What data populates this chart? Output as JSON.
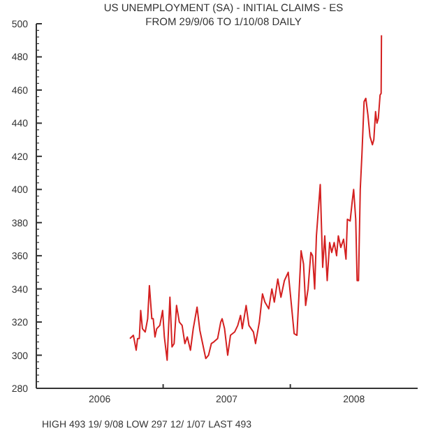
{
  "chart_data": {
    "type": "line",
    "title": "US UNEMPLOYMENT (SA) - INITIAL CLAIMS - ES",
    "subtitle": "FROM 29/9/06 TO 1/10/08 DAILY",
    "annotations": [
      "HIGH 493 19/ 9/08 LOW 297 12/ 1/07 LAST 493"
    ],
    "xlim": [
      "2006-01-01",
      "2009-01-01"
    ],
    "xticks": [
      {
        "value": "2006-07-02",
        "label": "2006"
      },
      {
        "value": "2007-07-02",
        "label": "2007"
      },
      {
        "value": "2008-07-02",
        "label": "2008"
      }
    ],
    "ylim": [
      280,
      500
    ],
    "yticks": [
      280,
      300,
      320,
      340,
      360,
      380,
      400,
      420,
      440,
      460,
      480,
      500
    ],
    "series": [
      {
        "color": "#d42020",
        "x": [
          "2006-09-27",
          "2006-10-07",
          "2006-10-15",
          "2006-10-19",
          "2006-10-24",
          "2006-10-28",
          "2006-11-02",
          "2006-11-10",
          "2006-11-17",
          "2006-11-22",
          "2006-11-29",
          "2006-12-03",
          "2006-12-08",
          "2006-12-13",
          "2006-12-22",
          "2006-12-30",
          "2007-01-04",
          "2007-01-12",
          "2007-01-20",
          "2007-01-26",
          "2007-02-01",
          "2007-02-08",
          "2007-02-16",
          "2007-02-24",
          "2007-03-04",
          "2007-03-11",
          "2007-03-20",
          "2007-03-28",
          "2007-04-08",
          "2007-04-16",
          "2007-04-24",
          "2007-05-03",
          "2007-05-11",
          "2007-05-19",
          "2007-05-26",
          "2007-06-06",
          "2007-06-15",
          "2007-06-19",
          "2007-06-26",
          "2007-07-05",
          "2007-07-13",
          "2007-07-25",
          "2007-08-03",
          "2007-08-11",
          "2007-08-16",
          "2007-08-27",
          "2007-09-04",
          "2007-09-17",
          "2007-09-23",
          "2007-10-04",
          "2007-10-13",
          "2007-10-20",
          "2007-10-31",
          "2007-11-09",
          "2007-11-16",
          "2007-11-26",
          "2007-12-05",
          "2007-12-15",
          "2007-12-26",
          "2008-01-02",
          "2008-01-12",
          "2008-01-20",
          "2008-01-26",
          "2008-02-01",
          "2008-02-08",
          "2008-02-14",
          "2008-02-21",
          "2008-02-29",
          "2008-03-05",
          "2008-03-11",
          "2008-03-16",
          "2008-03-27",
          "2008-04-03",
          "2008-04-09",
          "2008-04-16",
          "2008-04-23",
          "2008-04-29",
          "2008-05-06",
          "2008-05-13",
          "2008-05-18",
          "2008-05-25",
          "2008-06-02",
          "2008-06-09",
          "2008-06-13",
          "2008-06-21",
          "2008-06-27",
          "2008-07-01",
          "2008-07-07",
          "2008-07-11",
          "2008-07-15",
          "2008-07-20",
          "2008-07-25",
          "2008-07-31",
          "2008-08-05",
          "2008-08-11",
          "2008-08-17",
          "2008-08-24",
          "2008-08-28",
          "2008-09-02",
          "2008-09-06",
          "2008-09-10",
          "2008-09-15",
          "2008-09-18",
          "2008-09-19"
        ],
        "values": [
          310,
          312,
          303,
          310,
          310,
          327,
          316,
          314,
          322,
          342,
          322,
          322,
          311,
          316,
          318,
          327,
          311,
          297,
          335,
          305,
          307,
          330,
          320,
          318,
          307,
          311,
          303,
          316,
          329,
          315,
          307,
          298,
          300,
          307,
          308,
          310,
          320,
          322,
          316,
          300,
          312,
          314,
          318,
          324,
          316,
          330,
          318,
          314,
          307,
          320,
          337,
          332,
          328,
          340,
          332,
          346,
          335,
          345,
          350,
          335,
          313,
          312,
          337,
          363,
          355,
          330,
          340,
          362,
          360,
          340,
          372,
          403,
          353,
          372,
          345,
          368,
          362,
          368,
          360,
          372,
          365,
          370,
          358,
          382,
          381,
          393,
          400,
          382,
          345,
          345,
          400,
          422,
          453,
          455,
          445,
          432,
          427,
          430,
          447,
          440,
          443,
          457,
          458,
          493
        ]
      }
    ]
  }
}
